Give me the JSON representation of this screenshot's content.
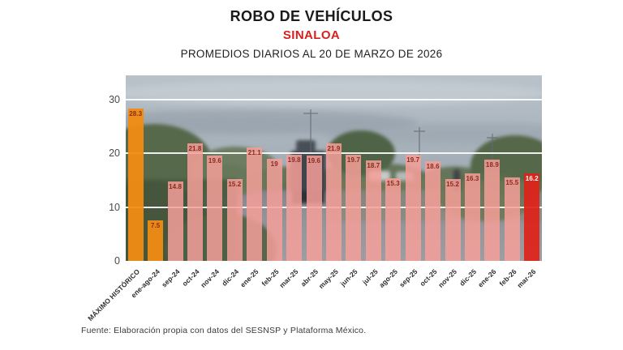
{
  "header": {
    "title": "ROBO DE VEHÍCULOS",
    "state": "SINALOA",
    "subtitle": "PROMEDIOS DIARIOS AL 20 DE MARZO DE 2026"
  },
  "footer": {
    "source": "Fuente: Elaboración propia con datos del SESNSP y Plataforma México."
  },
  "colors": {
    "state_accent": "#D6201E",
    "historic_bar": "rgba(240,140,18,0.95)",
    "normal_bar": "rgba(246,159,153,0.85)",
    "current_bar": "rgba(223,34,25,0.92)",
    "value_label": "#8C2A1D",
    "value_label_on_current": "#FFFFFF",
    "gridline": "rgba(255,255,255,0.9)",
    "y_axis_text": "#4A4A4A",
    "x_axis_text": "#303030"
  },
  "chart_data": {
    "type": "bar",
    "title": "ROBO DE VEHÍCULOS — SINALOA",
    "subtitle": "PROMEDIOS DIARIOS AL 20 DE MARZO DE 2026",
    "xlabel": "",
    "ylabel": "",
    "ylim": [
      0,
      34.5
    ],
    "yticks": [
      0,
      10,
      20,
      30
    ],
    "grid": "horizontal-white-lines",
    "legend": "none",
    "background": "street-photo",
    "categories": [
      "MÁXIMO HISTÓRICO",
      "ene-ago-24",
      "sep-24",
      "oct-24",
      "nov-24",
      "dic-24",
      "ene-25",
      "feb-25",
      "mar-25",
      "abr-25",
      "may-25",
      "jun-25",
      "jul-25",
      "ago-25",
      "sep-25",
      "oct-25",
      "nov-25",
      "dic-25",
      "ene-26",
      "feb-26",
      "mar-26"
    ],
    "values": [
      28.3,
      7.5,
      14.8,
      21.8,
      19.6,
      15.2,
      21.1,
      19,
      19.8,
      19.6,
      21.9,
      19.7,
      18.7,
      15.3,
      19.7,
      18.6,
      15.2,
      16.3,
      18.9,
      15.5,
      16.2
    ],
    "bar_roles": [
      "historic",
      "historic",
      "normal",
      "normal",
      "normal",
      "normal",
      "normal",
      "normal",
      "normal",
      "normal",
      "normal",
      "normal",
      "normal",
      "normal",
      "normal",
      "normal",
      "normal",
      "normal",
      "normal",
      "normal",
      "current"
    ]
  }
}
